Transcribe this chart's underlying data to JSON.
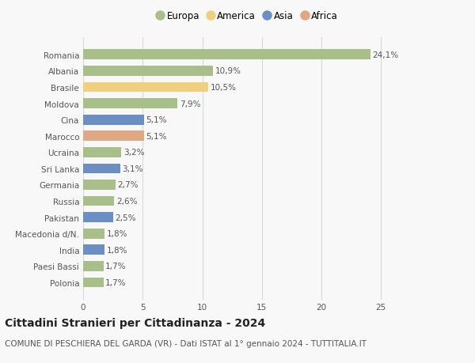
{
  "categories": [
    "Polonia",
    "Paesi Bassi",
    "India",
    "Macedonia d/N.",
    "Pakistan",
    "Russia",
    "Germania",
    "Sri Lanka",
    "Ucraina",
    "Marocco",
    "Cina",
    "Moldova",
    "Brasile",
    "Albania",
    "Romania"
  ],
  "values": [
    1.7,
    1.7,
    1.8,
    1.8,
    2.5,
    2.6,
    2.7,
    3.1,
    3.2,
    5.1,
    5.1,
    7.9,
    10.5,
    10.9,
    24.1
  ],
  "bar_colors": [
    "#a8bf8a",
    "#a8bf8a",
    "#6b8fc2",
    "#a8bf8a",
    "#6b8fc2",
    "#a8bf8a",
    "#a8bf8a",
    "#6b8fc2",
    "#a8bf8a",
    "#e0a882",
    "#6b8fc2",
    "#a8bf8a",
    "#f0d080",
    "#a8bf8a",
    "#a8bf8a"
  ],
  "labels": [
    "1,7%",
    "1,7%",
    "1,8%",
    "1,8%",
    "2,5%",
    "2,6%",
    "2,7%",
    "3,1%",
    "3,2%",
    "5,1%",
    "5,1%",
    "7,9%",
    "10,5%",
    "10,9%",
    "24,1%"
  ],
  "legend": [
    {
      "label": "Europa",
      "color": "#a8bf8a"
    },
    {
      "label": "America",
      "color": "#f0d080"
    },
    {
      "label": "Asia",
      "color": "#6b8fc2"
    },
    {
      "label": "Africa",
      "color": "#e0a882"
    }
  ],
  "title": "Cittadini Stranieri per Cittadinanza - 2024",
  "subtitle": "COMUNE DI PESCHIERA DEL GARDA (VR) - Dati ISTAT al 1° gennaio 2024 - TUTTITALIA.IT",
  "xlim": [
    0,
    27.5
  ],
  "xticks": [
    0,
    5,
    10,
    15,
    20,
    25
  ],
  "background_color": "#f8f8f8",
  "grid_color": "#d8d8d8",
  "bar_height": 0.62,
  "label_fontsize": 7.5,
  "title_fontsize": 10,
  "subtitle_fontsize": 7.5,
  "tick_fontsize": 7.5,
  "legend_fontsize": 8.5
}
